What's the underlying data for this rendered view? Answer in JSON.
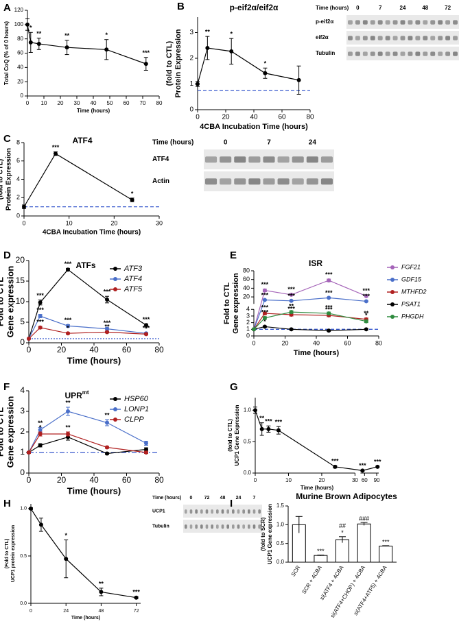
{
  "chart_data": [
    {
      "panel": "A",
      "type": "line",
      "xlabel": "Time (hours)",
      "ylabel": "Total CoQ (% of 0 hours)",
      "x": [
        0,
        2,
        7,
        24,
        48,
        72
      ],
      "xlim": [
        0,
        80
      ],
      "xticks": [
        0,
        10,
        20,
        30,
        40,
        50,
        60,
        70,
        80
      ],
      "ylim": [
        0,
        120
      ],
      "yticks": [
        0,
        20,
        40,
        60,
        80,
        100,
        120
      ],
      "series": [
        {
          "color": "#000000",
          "values": [
            100,
            75,
            73,
            68,
            65,
            45
          ],
          "errors": [
            8,
            14,
            8,
            10,
            14,
            9
          ],
          "annotations": [
            null,
            "*",
            "**",
            "**",
            "*",
            "***"
          ]
        }
      ]
    },
    {
      "panel": "B",
      "type": "line",
      "title": "p-eif2α/eif2α",
      "xlabel": "4CBA Incubation Time (hours)",
      "ylabel": [
        "Protein Expression",
        "(fold to CTL)"
      ],
      "x": [
        0,
        7,
        24,
        48,
        72
      ],
      "xlim": [
        0,
        80
      ],
      "xticks": [
        0,
        20,
        40,
        60,
        80
      ],
      "ylim": [
        0,
        3.6
      ],
      "yticks": [
        0,
        1,
        2,
        3
      ],
      "reference_line": {
        "value": 0.75,
        "color": "#3355cc",
        "dash": "dashed"
      },
      "series": [
        {
          "color": "#000000",
          "values": [
            1,
            2.4,
            2.27,
            1.42,
            1.15
          ],
          "errors": [
            0.1,
            0.45,
            0.5,
            0.2,
            0.55
          ],
          "annotations": [
            null,
            "**",
            "*",
            "*",
            null
          ]
        }
      ],
      "blot": {
        "time_label": "Time (hours)",
        "lanes": [
          "0",
          "7",
          "24",
          "48",
          "72"
        ],
        "rows": [
          "p-eif2α",
          "eif2α",
          "Tubulin"
        ]
      }
    },
    {
      "panel": "C",
      "type": "line",
      "title": "ATF4",
      "xlabel": "4CBA Incubation Time (hours)",
      "ylabel": [
        "Protein Expression",
        "(fold to CTL)"
      ],
      "x": [
        0,
        7,
        24
      ],
      "xlim": [
        0,
        30
      ],
      "xticks": [
        0,
        10,
        20,
        30
      ],
      "ylim": [
        0,
        8
      ],
      "yticks": [
        0,
        2,
        4,
        6,
        8
      ],
      "reference_line": {
        "value": 1,
        "color": "#3355cc",
        "dash": "dashed"
      },
      "series": [
        {
          "color": "#000000",
          "values": [
            1,
            6.8,
            1.75
          ],
          "errors": [
            0.2,
            0.2,
            0.2
          ],
          "annotations": [
            null,
            "***",
            "*"
          ]
        }
      ],
      "blot": {
        "time_label": "Time (hours)",
        "lanes": [
          "0",
          "7",
          "24"
        ],
        "rows": [
          "ATF4",
          "Actin"
        ]
      }
    },
    {
      "panel": "D",
      "type": "line",
      "title": "ATFs",
      "xlabel": "Time (hours)",
      "ylabel": [
        "Gene expression",
        "Fold to CTL"
      ],
      "x": [
        0,
        7,
        24,
        48,
        72
      ],
      "xlim": [
        0,
        80
      ],
      "xticks": [
        0,
        20,
        40,
        60,
        80
      ],
      "ylim": [
        0,
        20
      ],
      "yticks": [
        0,
        5,
        10,
        15,
        20
      ],
      "legend": "upper right",
      "reference_line": {
        "value": 1,
        "color": "#3355cc",
        "dash": "dotted"
      },
      "series": [
        {
          "name": "ATF3",
          "color": "#000000",
          "values": [
            1,
            9.8,
            17.8,
            10.5,
            4.3
          ],
          "errors": [
            0.1,
            0.6,
            0.3,
            0.8,
            0.3
          ],
          "annotations": [
            null,
            "***",
            "***",
            "***",
            "***"
          ]
        },
        {
          "name": "ATF4",
          "color": "#4a6fc9",
          "values": [
            1,
            6.5,
            4.1,
            3.4,
            2.3
          ],
          "errors": [
            0.1,
            0.4,
            0.3,
            0.3,
            0.2
          ],
          "annotations": [
            null,
            "***",
            "***",
            "***",
            "***"
          ]
        },
        {
          "name": "ATF5",
          "color": "#b02020",
          "values": [
            1,
            3.7,
            2.3,
            2.6,
            2.1
          ],
          "errors": [
            0.1,
            0.3,
            0.2,
            0.2,
            0.2
          ],
          "annotations": [
            null,
            "***",
            "*",
            "**",
            "*"
          ]
        }
      ]
    },
    {
      "panel": "E",
      "type": "line",
      "title": "ISR",
      "xlabel": "Time (hours)",
      "ylabel": [
        "Gene expression",
        "Fold to CTL"
      ],
      "x": [
        0,
        7,
        24,
        48,
        72
      ],
      "xlim": [
        0,
        80
      ],
      "xticks": [
        0,
        20,
        40,
        60,
        80
      ],
      "ylim": [
        0,
        80
      ],
      "ybreak": [
        4,
        4
      ],
      "yticks": [
        0,
        1,
        2,
        3,
        4,
        20,
        40,
        60,
        80
      ],
      "legend": "right",
      "reference_line": {
        "value": 1,
        "color": "#3355cc",
        "dash": "dashed"
      },
      "series": [
        {
          "name": "FGF21",
          "color": "#a463b8",
          "values": [
            1,
            35,
            25,
            58,
            22
          ],
          "errors": [
            0.1,
            3,
            2,
            3,
            2
          ],
          "annotations": [
            null,
            "***",
            "***",
            "***",
            "***"
          ]
        },
        {
          "name": "GDF15",
          "color": "#4a6fc9",
          "values": [
            1,
            13,
            11,
            18,
            10
          ],
          "errors": [
            0.1,
            1,
            1,
            1,
            1
          ],
          "annotations": [
            null,
            "***",
            "***",
            "***",
            "***"
          ]
        },
        {
          "name": "MTHFD2",
          "color": "#b02020",
          "values": [
            1,
            3.4,
            3.2,
            3.1,
            2.5
          ],
          "errors": [
            0.1,
            0.2,
            0.2,
            0.2,
            0.2
          ],
          "annotations": [
            null,
            "***",
            "***",
            "***",
            "**"
          ]
        },
        {
          "name": "PSAT1",
          "color": "#000000",
          "values": [
            1,
            1.4,
            1.0,
            0.8,
            1.0
          ],
          "errors": [
            0.05,
            0.1,
            0.1,
            0.1,
            0.1
          ],
          "annotations": [
            null,
            "*",
            null,
            null,
            null
          ]
        },
        {
          "name": "PHGDH",
          "color": "#2e8b3e",
          "values": [
            1,
            2.7,
            3.6,
            3.4,
            2.2
          ],
          "errors": [
            0.1,
            0.2,
            0.2,
            0.2,
            0.2
          ],
          "annotations": [
            null,
            "***",
            "**",
            "***",
            "*"
          ]
        }
      ]
    },
    {
      "panel": "F",
      "type": "line",
      "title": "UPR",
      "title_superscript": "mt",
      "xlabel": "Time (hours)",
      "ylabel": [
        "Gene expression",
        "Fold to CTL"
      ],
      "x": [
        0,
        7,
        24,
        48,
        72
      ],
      "xlim": [
        0,
        80
      ],
      "xticks": [
        0,
        20,
        40,
        60,
        80
      ],
      "ylim": [
        0,
        4
      ],
      "yticks": [
        0,
        1,
        2,
        3,
        4
      ],
      "legend": "upper right",
      "reference_line": {
        "value": 1,
        "color": "#3355cc",
        "dash": "dashdot"
      },
      "series": [
        {
          "name": "HSP60",
          "color": "#000000",
          "values": [
            1,
            1.35,
            1.75,
            0.95,
            1.15
          ],
          "errors": [
            0.05,
            0.08,
            0.15,
            0.05,
            0.08
          ],
          "annotations": [
            null,
            null,
            null,
            null,
            null
          ]
        },
        {
          "name": "LONP1",
          "color": "#4a6fc9",
          "values": [
            1,
            2.1,
            3.0,
            2.45,
            1.45
          ],
          "errors": [
            0.05,
            0.12,
            0.2,
            0.15,
            0.1
          ],
          "annotations": [
            null,
            "**",
            "**",
            "**",
            null
          ]
        },
        {
          "name": "CLPP",
          "color": "#b02020",
          "values": [
            1,
            1.9,
            1.9,
            1.25,
            1.0
          ],
          "errors": [
            0.05,
            0.1,
            0.1,
            0.05,
            0.05
          ],
          "annotations": [
            null,
            "*",
            "**",
            null,
            null
          ]
        }
      ]
    },
    {
      "panel": "G",
      "type": "line",
      "xlabel": "Time (hours)",
      "ylabel": [
        "UCP1 Gene Expression",
        "(fold to CTL)"
      ],
      "x": [
        0,
        2,
        4,
        7,
        24,
        55,
        92
      ],
      "xlim": [
        0,
        95
      ],
      "xbreak": [
        30,
        50
      ],
      "xticks": [
        0,
        10,
        20,
        30,
        60,
        90
      ],
      "ylim": [
        0,
        1.2
      ],
      "yticks": [
        {
          "value": 0,
          "label": "0.0"
        },
        {
          "value": 0.5,
          "label": "0.5"
        },
        {
          "value": 1,
          "label": "1.0"
        }
      ],
      "series": [
        {
          "color": "#000000",
          "values": [
            1,
            0.7,
            0.7,
            0.68,
            0.1,
            0.04,
            0.1
          ],
          "errors": [
            0.05,
            0.1,
            0.05,
            0.06,
            0.02,
            0.01,
            0.01
          ],
          "annotations": [
            null,
            "**",
            "***",
            "***",
            "***",
            "***",
            "***"
          ]
        }
      ]
    },
    {
      "panel": "H",
      "type": "line",
      "xlabel": "Time (hours)",
      "ylabel": [
        "UCP1 protein expression",
        "(Fold to CTL)"
      ],
      "x": [
        0,
        7,
        24,
        48,
        72
      ],
      "xlim": [
        0,
        75
      ],
      "xticks": [
        0,
        24,
        48,
        72
      ],
      "ylim": [
        0,
        1.05
      ],
      "yticks": [
        {
          "value": 0,
          "label": "0.0"
        },
        {
          "value": 0.5,
          "label": "0.5"
        },
        {
          "value": 1,
          "label": "1.0"
        }
      ],
      "series": [
        {
          "color": "#000000",
          "values": [
            1,
            0.83,
            0.47,
            0.12,
            0.06
          ],
          "errors": [
            0.01,
            0.07,
            0.2,
            0.04,
            0.01
          ],
          "annotations": [
            null,
            null,
            "*",
            "**",
            "***"
          ]
        }
      ],
      "blot": {
        "time_label": "Time (hours)",
        "lanes": [
          "0",
          "72",
          "48",
          "24",
          "7"
        ],
        "rows": [
          "UCP1",
          "Tubulin"
        ]
      }
    },
    {
      "panel": "I",
      "type": "bar",
      "title": "Murine Brown Adipocytes",
      "ylabel": [
        "UCP1 Gene expression",
        "(fold to SCR)"
      ],
      "categories": [
        "SCR",
        "SCR + 4CBA",
        "si(ATF4 + 4CBA",
        "si(ATF4+CHOP) + 4CBA",
        "si(ATF4+ATF5) + 4CBA"
      ],
      "values": [
        1.0,
        0.18,
        0.6,
        1.02,
        0.43
      ],
      "errors": [
        0.22,
        0.01,
        0.08,
        0.04,
        0.01
      ],
      "color": "#ffffff",
      "annotations": [
        [],
        [
          "***"
        ],
        [
          "*",
          "##"
        ],
        [
          "###"
        ],
        [
          "***"
        ]
      ],
      "ylim": [
        0,
        1.5
      ],
      "yticks": [
        {
          "value": 0,
          "label": "0.0"
        },
        {
          "value": 0.5,
          "label": "0.5"
        },
        {
          "value": 1,
          "label": "1.0"
        },
        {
          "value": 1.5,
          "label": "1.5"
        }
      ]
    }
  ]
}
